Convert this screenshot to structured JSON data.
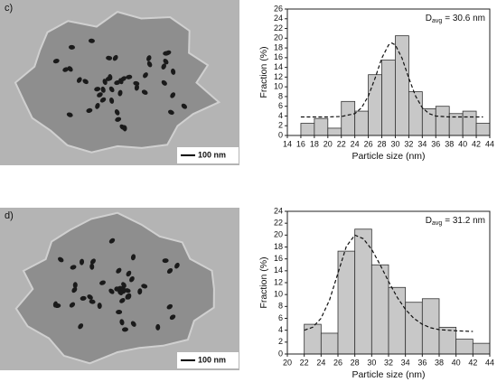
{
  "chart_data": [
    {
      "type": "histogram",
      "panel_label": "c)",
      "scale_bar": "100 nm",
      "annotation": {
        "symbol": "D",
        "subscript": "avg",
        "text": "= 30.6 nm"
      },
      "xlabel": "Particle size (nm)",
      "ylabel": "Fraction (%)",
      "bins": [
        16,
        18,
        20,
        22,
        24,
        26,
        28,
        30,
        32,
        34,
        36,
        38,
        40,
        42,
        44
      ],
      "values": [
        2.5,
        3.5,
        1.5,
        7,
        5,
        12.5,
        15.5,
        20.5,
        9,
        5.5,
        6,
        4.5,
        5,
        2.5
      ],
      "color": "#c8c8c8",
      "fit": {
        "x": [
          16,
          18,
          20,
          22,
          24,
          25,
          26,
          27,
          28,
          29,
          29.5,
          30,
          31,
          32,
          33,
          34,
          35,
          36,
          38,
          40,
          42,
          43
        ],
        "y": [
          3.8,
          3.8,
          3.8,
          3.9,
          4.5,
          5.7,
          8.1,
          11.8,
          15.9,
          18.6,
          19,
          18.6,
          15.9,
          11.8,
          8.1,
          5.7,
          4.5,
          4,
          3.8,
          3.8,
          3.8,
          3.8
        ]
      },
      "xlim": [
        14,
        44
      ],
      "xticks": [
        14,
        16,
        18,
        20,
        22,
        24,
        26,
        28,
        30,
        32,
        34,
        36,
        38,
        40,
        42,
        44
      ],
      "ylim": [
        0,
        26
      ],
      "yticks": [
        0,
        2,
        4,
        6,
        8,
        10,
        12,
        14,
        16,
        18,
        20,
        22,
        24,
        26
      ]
    },
    {
      "type": "histogram",
      "panel_label": "d)",
      "scale_bar": "100 nm",
      "annotation": {
        "symbol": "D",
        "subscript": "avg",
        "text": "= 31.2 nm"
      },
      "xlabel": "Particle size (nm)",
      "ylabel": "Fraction (%)",
      "bins": [
        22,
        24,
        26,
        28,
        30,
        32,
        34,
        36,
        38,
        40,
        42,
        44
      ],
      "values": [
        5,
        3.5,
        17.3,
        21,
        15,
        11.2,
        8.7,
        9.3,
        4.5,
        2.5,
        1.8
      ],
      "color": "#c8c8c8",
      "fit": {
        "x": [
          22,
          23,
          24,
          25,
          26,
          27,
          28,
          29,
          30,
          31,
          32,
          33,
          34,
          35,
          36,
          37,
          38,
          40,
          42
        ],
        "y": [
          4,
          4.5,
          6,
          9.1,
          13.6,
          18.1,
          20,
          19.4,
          17.6,
          15,
          12.2,
          9.6,
          7.5,
          6,
          5,
          4.4,
          4.1,
          3.9,
          3.8
        ]
      },
      "xlim": [
        20,
        44
      ],
      "xticks": [
        20,
        22,
        24,
        26,
        28,
        30,
        32,
        34,
        36,
        38,
        40,
        42,
        44
      ],
      "ylim": [
        0,
        24
      ],
      "yticks": [
        0,
        2,
        4,
        6,
        8,
        10,
        12,
        14,
        16,
        18,
        20,
        22,
        24
      ]
    }
  ]
}
